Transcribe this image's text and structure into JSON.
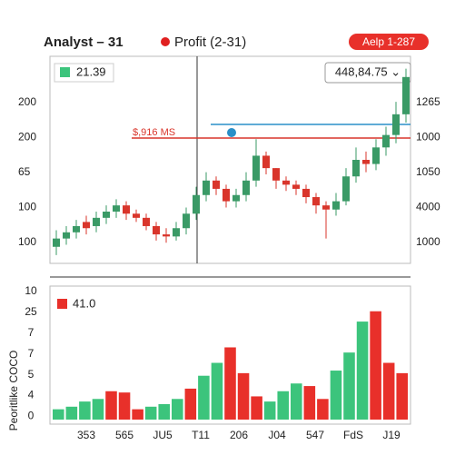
{
  "header": {
    "title": "Analyst – 31",
    "legend_label": "Profit (2-31)",
    "badge": "Aelp 1-287"
  },
  "chart_data": [
    {
      "type": "candlestick",
      "legend_value": "21.39",
      "price_box": "448,84.75 ⌄",
      "line_label": "$,916 MS",
      "axis_labels_left": [
        "200",
        "200",
        "65",
        "100",
        "100"
      ],
      "axis_labels_right": [
        "1265",
        "1000",
        "1050",
        "4000",
        "1000"
      ],
      "ylim": [
        0,
        100
      ],
      "up_color": "#3a9a66",
      "down_color": "#d9352b",
      "open": [
        8,
        12,
        15,
        20,
        18,
        22,
        25,
        28,
        24,
        22,
        18,
        14,
        13,
        17,
        24,
        33,
        40,
        36,
        30,
        33,
        40,
        52,
        46,
        40,
        38,
        36,
        32,
        28,
        26,
        30,
        42,
        50,
        48,
        56,
        62,
        72
      ],
      "high": [
        16,
        18,
        21,
        23,
        25,
        28,
        31,
        30,
        26,
        24,
        20,
        17,
        20,
        27,
        37,
        44,
        42,
        38,
        36,
        44,
        60,
        54,
        46,
        42,
        40,
        38,
        34,
        30,
        34,
        46,
        56,
        54,
        60,
        66,
        78,
        94
      ],
      "low": [
        4,
        9,
        12,
        14,
        15,
        19,
        22,
        21,
        20,
        16,
        11,
        10,
        11,
        14,
        21,
        30,
        33,
        27,
        27,
        30,
        37,
        43,
        36,
        35,
        33,
        29,
        24,
        12,
        23,
        28,
        39,
        44,
        45,
        52,
        58,
        68
      ],
      "close": [
        12,
        15,
        18,
        17,
        22,
        25,
        28,
        24,
        22,
        18,
        14,
        13,
        17,
        24,
        33,
        40,
        36,
        30,
        33,
        40,
        52,
        46,
        40,
        38,
        36,
        32,
        28,
        26,
        30,
        42,
        50,
        48,
        56,
        62,
        72,
        90
      ]
    },
    {
      "type": "bar",
      "legend_value": "41.0",
      "y_label": "Peoritlike COCO",
      "axis_labels_left": [
        "10",
        "25",
        "7",
        "7",
        "5",
        "4",
        "0"
      ],
      "x_labels": [
        "353",
        "565",
        "JU5",
        "T11",
        "206",
        "J04",
        "547",
        "FdS",
        "J19"
      ],
      "ylim": [
        0,
        100
      ],
      "values": [
        8,
        10,
        14,
        16,
        22,
        21,
        8,
        10,
        12,
        16,
        24,
        34,
        44,
        56,
        36,
        18,
        14,
        22,
        28,
        26,
        16,
        38,
        52,
        76,
        84,
        44,
        36
      ],
      "colors": [
        "#3cc47c",
        "#3cc47c",
        "#3cc47c",
        "#3cc47c",
        "#e8302a",
        "#e8302a",
        "#e8302a",
        "#3cc47c",
        "#3cc47c",
        "#3cc47c",
        "#e8302a",
        "#3cc47c",
        "#3cc47c",
        "#e8302a",
        "#e8302a",
        "#e8302a",
        "#3cc47c",
        "#3cc47c",
        "#3cc47c",
        "#e8302a",
        "#e8302a",
        "#3cc47c",
        "#3cc47c",
        "#3cc47c",
        "#e8302a",
        "#e8302a",
        "#e8302a"
      ]
    }
  ]
}
